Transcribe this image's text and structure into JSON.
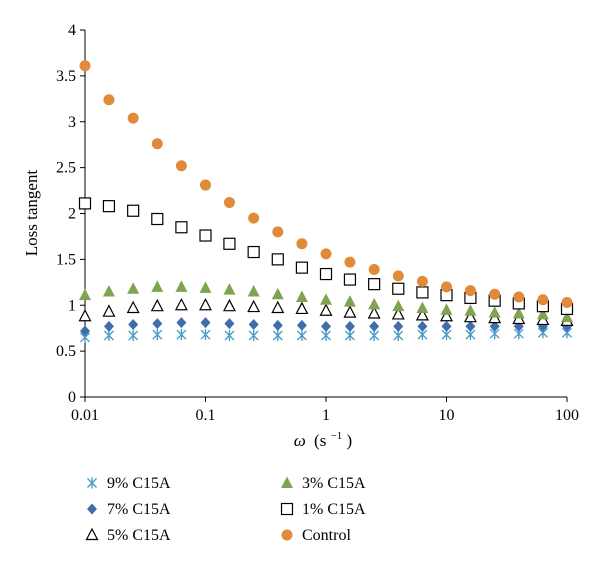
{
  "chart_data": {
    "type": "scatter",
    "title": "",
    "xlabel_symbol": "ω",
    "xlabel_unit": "(s",
    "xlabel_exp": "−1",
    "xlabel_close": ")",
    "ylabel": "Loss tangent",
    "x_scale": "log",
    "xlim": [
      0.01,
      100
    ],
    "ylim": [
      0,
      4
    ],
    "x_ticks": [
      0.01,
      0.1,
      1,
      10,
      100
    ],
    "x_tick_labels": [
      "0.01",
      "0.1",
      "1",
      "10",
      "100"
    ],
    "y_ticks": [
      0,
      0.5,
      1,
      1.5,
      2,
      2.5,
      3,
      3.5,
      4
    ],
    "y_tick_labels": [
      "0",
      "0.5",
      "1",
      "1.5",
      "2",
      "2.5",
      "3",
      "3.5",
      "4"
    ],
    "grid": false,
    "legend_position": "bottom",
    "x": [
      0.01,
      0.0158,
      0.0251,
      0.0398,
      0.0631,
      0.1,
      0.158,
      0.251,
      0.398,
      0.631,
      1,
      1.58,
      2.51,
      3.98,
      6.31,
      10,
      15.8,
      25.1,
      39.8,
      63.1,
      100
    ],
    "series": [
      {
        "name": "9% C15A",
        "marker": "x-cross",
        "color": "#4a9ec9",
        "values": [
          0.65,
          0.67,
          0.67,
          0.68,
          0.68,
          0.68,
          0.67,
          0.67,
          0.67,
          0.67,
          0.67,
          0.67,
          0.67,
          0.67,
          0.68,
          0.68,
          0.68,
          0.69,
          0.69,
          0.7,
          0.7
        ]
      },
      {
        "name": "7% C15A",
        "marker": "diamond",
        "color": "#3f6ead",
        "values": [
          0.72,
          0.77,
          0.79,
          0.8,
          0.81,
          0.81,
          0.8,
          0.79,
          0.78,
          0.78,
          0.77,
          0.77,
          0.77,
          0.77,
          0.77,
          0.77,
          0.77,
          0.77,
          0.77,
          0.77,
          0.77
        ]
      },
      {
        "name": "5% C15A",
        "marker": "triangle-open",
        "color": "#000000",
        "values": [
          0.88,
          0.93,
          0.97,
          0.99,
          1.0,
          1.0,
          0.99,
          0.98,
          0.97,
          0.96,
          0.94,
          0.92,
          0.91,
          0.9,
          0.89,
          0.88,
          0.87,
          0.86,
          0.85,
          0.84,
          0.83
        ]
      },
      {
        "name": "3% C15A",
        "marker": "triangle-filled",
        "color": "#7fa450",
        "values": [
          1.11,
          1.15,
          1.18,
          1.2,
          1.2,
          1.19,
          1.17,
          1.15,
          1.12,
          1.09,
          1.06,
          1.04,
          1.01,
          0.99,
          0.97,
          0.95,
          0.94,
          0.92,
          0.91,
          0.9,
          0.87
        ]
      },
      {
        "name": "1% C15A",
        "marker": "square-open",
        "color": "#000000",
        "values": [
          2.11,
          2.08,
          2.03,
          1.94,
          1.85,
          1.76,
          1.67,
          1.58,
          1.5,
          1.41,
          1.34,
          1.28,
          1.23,
          1.18,
          1.14,
          1.11,
          1.08,
          1.05,
          1.02,
          0.99,
          0.96
        ]
      },
      {
        "name": "Control",
        "marker": "circle",
        "color": "#e08a3a",
        "values": [
          3.61,
          3.24,
          3.04,
          2.76,
          2.52,
          2.31,
          2.12,
          1.95,
          1.8,
          1.67,
          1.56,
          1.47,
          1.39,
          1.32,
          1.26,
          1.2,
          1.16,
          1.12,
          1.09,
          1.06,
          1.03
        ]
      }
    ],
    "legend_order": [
      0,
      3,
      1,
      4,
      2,
      5
    ]
  }
}
